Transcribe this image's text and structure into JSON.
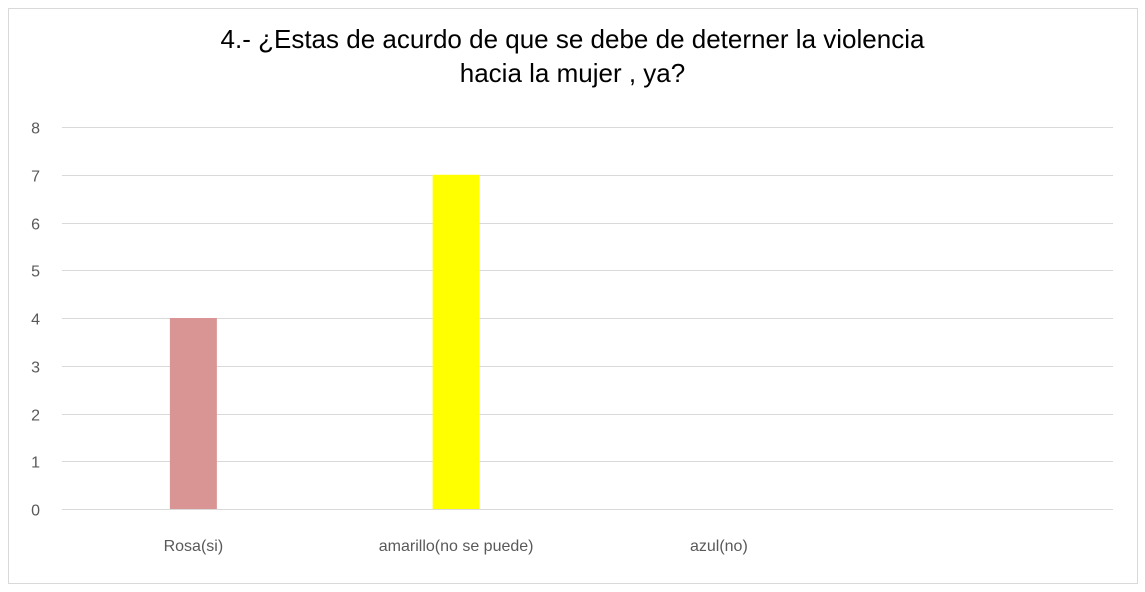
{
  "chart_data": {
    "type": "bar",
    "title_lines": [
      "4.- ¿Estas de acurdo de que se debe de deterner la violencia",
      "hacia la mujer , ya?"
    ],
    "categories": [
      "Rosa(si)",
      "amarillo(no se puede)",
      "azul(no)",
      ""
    ],
    "values": [
      4,
      7,
      0,
      0
    ],
    "colors": [
      "#d99594",
      "#ffff00",
      "#4f81bd",
      "#ffffff"
    ],
    "ylim": [
      0,
      8
    ],
    "yticks": [
      0,
      1,
      2,
      3,
      4,
      5,
      6,
      7,
      8
    ],
    "grid": true,
    "gridline_color": "#d9d9d9",
    "xlabel": "",
    "ylabel": ""
  }
}
